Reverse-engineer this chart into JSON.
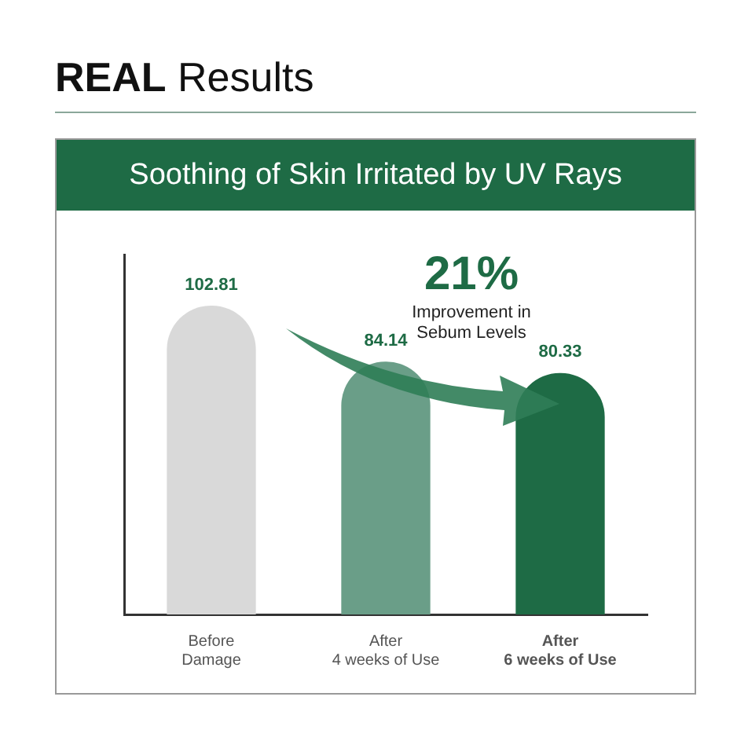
{
  "chart_data": {
    "type": "bar",
    "title": "REAL Results",
    "subtitle": "Soothing of Skin Irritated by UV Rays",
    "categories": [
      "Before Damage",
      "After 4 weeks of Use",
      "After 6 weeks of Use"
    ],
    "values": [
      102.81,
      84.14,
      80.33
    ],
    "colors": [
      "#d9d9d9",
      "#6a9e88",
      "#1e6b45"
    ],
    "data_labels": true,
    "annotations": [
      "21%",
      "Improvement in Sebum Levels"
    ]
  }
}
